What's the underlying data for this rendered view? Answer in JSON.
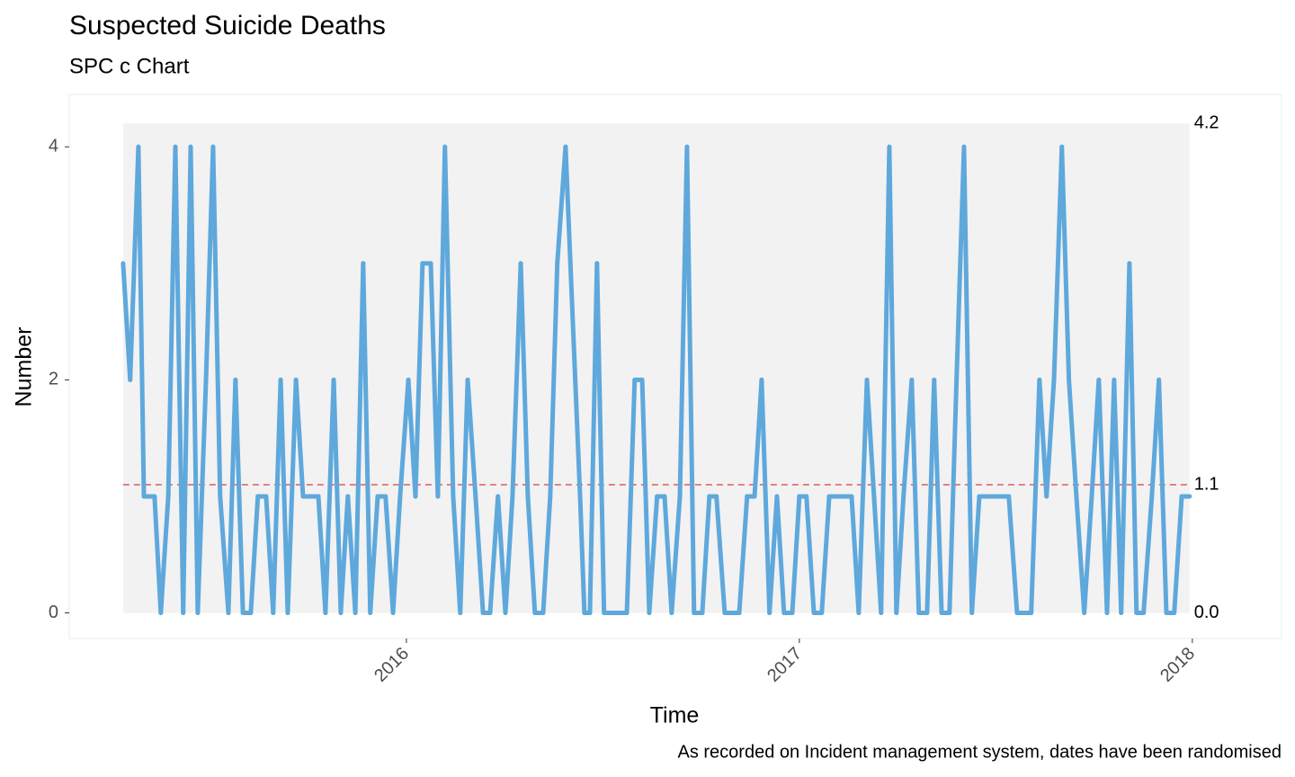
{
  "chart_data": {
    "type": "line",
    "title": "Suspected Suicide Deaths",
    "subtitle": "SPC c Chart",
    "x_label": "Time",
    "y_label": "Number",
    "caption": "As recorded on Incident management system, dates have been randomised",
    "x": [
      2015.279,
      2015.297,
      2015.318,
      2015.332,
      2015.359,
      2015.375,
      2015.394,
      2015.412,
      2015.432,
      2015.451,
      2015.469,
      2015.49,
      2015.508,
      2015.526,
      2015.547,
      2015.565,
      2015.584,
      2015.604,
      2015.622,
      2015.643,
      2015.661,
      2015.68,
      2015.698,
      2015.719,
      2015.737,
      2015.776,
      2015.794,
      2015.815,
      2015.833,
      2015.851,
      2015.87,
      2015.89,
      2015.908,
      2015.927,
      2015.947,
      2015.966,
      2015.984,
      2016.005,
      2016.023,
      2016.041,
      2016.062,
      2016.08,
      2016.098,
      2016.119,
      2016.137,
      2016.156,
      2016.176,
      2016.195,
      2016.213,
      2016.233,
      2016.252,
      2016.27,
      2016.291,
      2016.309,
      2016.327,
      2016.348,
      2016.366,
      2016.384,
      2016.405,
      2016.442,
      2016.453,
      2016.467,
      2016.485,
      2016.503,
      2016.561,
      2016.581,
      2016.6,
      2016.618,
      2016.638,
      2016.657,
      2016.675,
      2016.696,
      2016.714,
      2016.732,
      2016.753,
      2016.771,
      2016.789,
      2016.81,
      2016.847,
      2016.867,
      2016.886,
      2016.904,
      2016.924,
      2016.943,
      2016.961,
      2016.982,
      2017.0,
      2017.018,
      2017.037,
      2017.057,
      2017.076,
      2017.133,
      2017.151,
      2017.172,
      2017.19,
      2017.208,
      2017.229,
      2017.247,
      2017.265,
      2017.286,
      2017.304,
      2017.325,
      2017.343,
      2017.362,
      2017.382,
      2017.4,
      2017.419,
      2017.439,
      2017.458,
      2017.533,
      2017.554,
      2017.59,
      2017.611,
      2017.629,
      2017.648,
      2017.668,
      2017.686,
      2017.705,
      2017.725,
      2017.744,
      2017.762,
      2017.783,
      2017.801,
      2017.819,
      2017.84,
      2017.858,
      2017.876,
      2017.897,
      2017.915,
      2017.934,
      2017.954,
      2017.973,
      2017.993
    ],
    "series": [
      {
        "name": "Number",
        "color": "#5ea8dc",
        "values": [
          3,
          2,
          4,
          1,
          1,
          0,
          1,
          4,
          0,
          4,
          0,
          2,
          4,
          1,
          0,
          2,
          0,
          0,
          1,
          1,
          0,
          2,
          0,
          2,
          1,
          1,
          0,
          2,
          0,
          1,
          0,
          3,
          0,
          1,
          1,
          0,
          1,
          2,
          1,
          3,
          3,
          1,
          4,
          1,
          0,
          2,
          1,
          0,
          0,
          1,
          0,
          1,
          3,
          1,
          0,
          0,
          1,
          3,
          4,
          1,
          0,
          0,
          3,
          0,
          0,
          2,
          2,
          0,
          1,
          1,
          0,
          1,
          4,
          0,
          0,
          1,
          1,
          0,
          0,
          1,
          1,
          2,
          0,
          1,
          0,
          0,
          1,
          1,
          0,
          0,
          1,
          1,
          0,
          2,
          1,
          0,
          4,
          0,
          1,
          2,
          0,
          0,
          2,
          0,
          0,
          2,
          4,
          0,
          1,
          1,
          0,
          0,
          2,
          1,
          2,
          4,
          2,
          1,
          0,
          1,
          2,
          0,
          2,
          0,
          3,
          0,
          0,
          1,
          2,
          0,
          0,
          1,
          1
        ]
      }
    ],
    "ucl": 4.2,
    "cl": 1.1,
    "lcl": {
      "value": 0,
      "label": "0.0"
    },
    "band_color": "#f2f2f2",
    "cl_color": "#e05a5a",
    "xlim": [
      2015.142,
      2018.227
    ],
    "ylim": [
      -0.22,
      4.45
    ],
    "xticks": [
      2016,
      2017,
      2018
    ],
    "yticks": [
      0,
      2,
      4
    ]
  }
}
